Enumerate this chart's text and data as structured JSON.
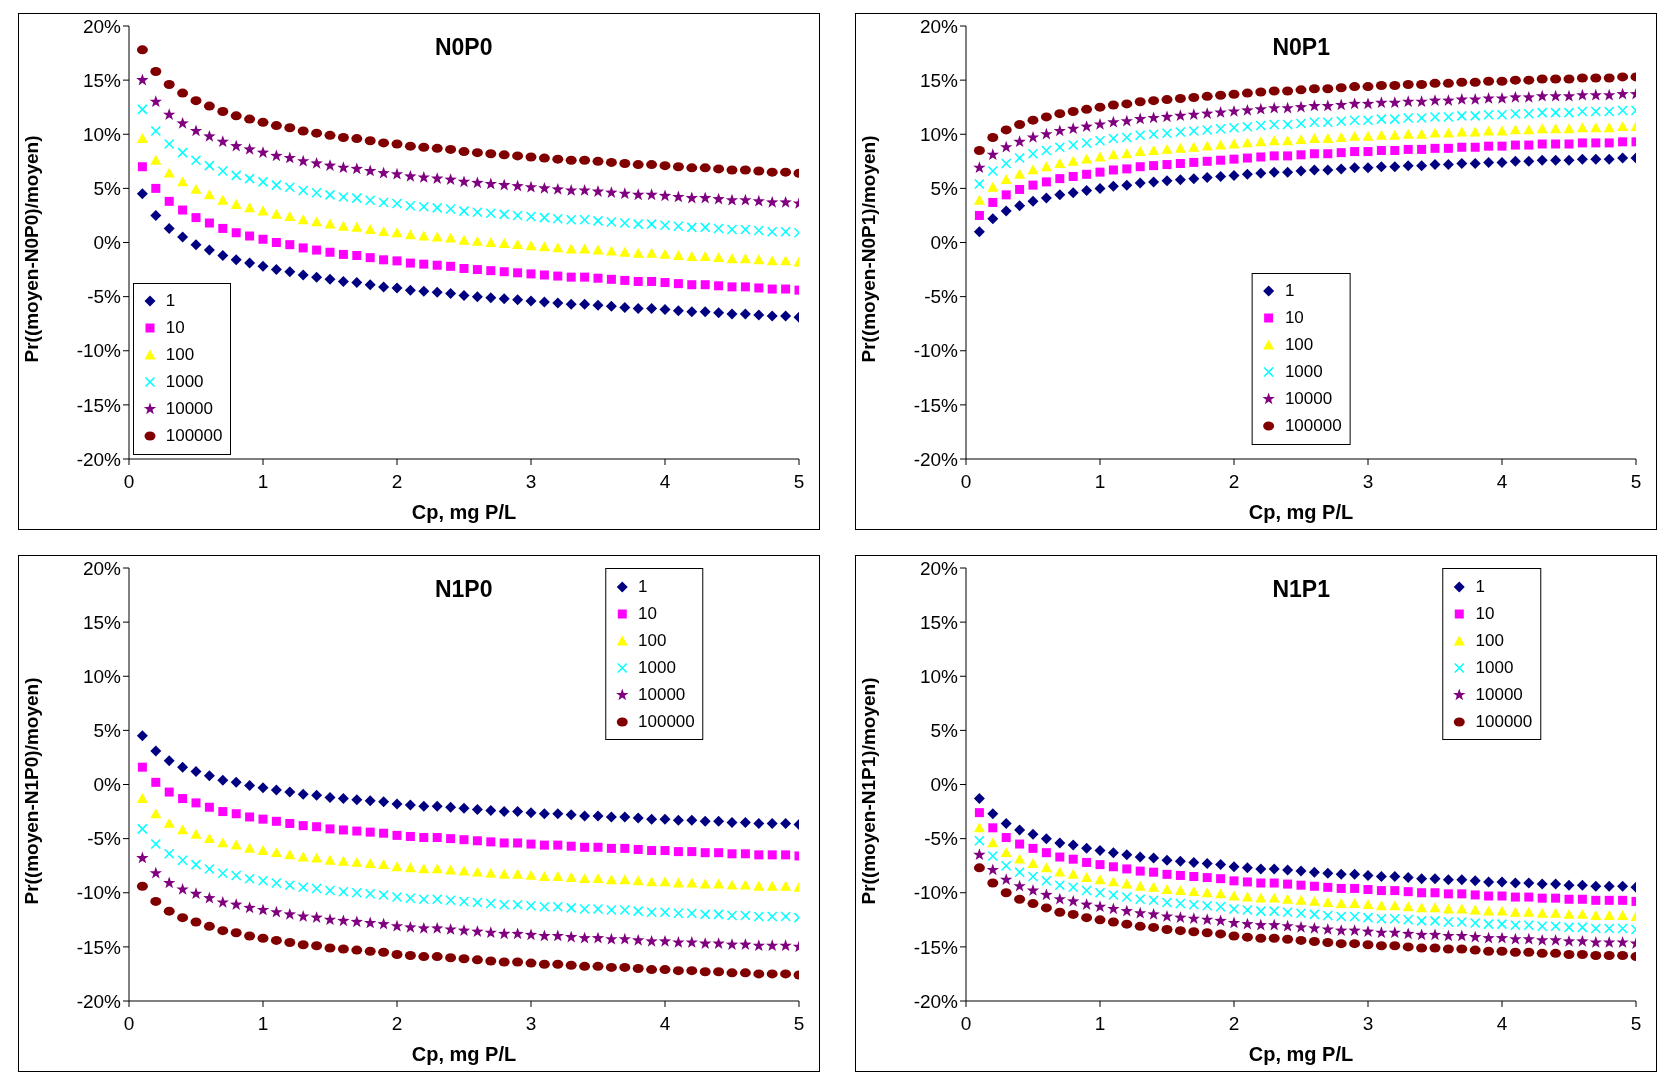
{
  "chart_data": [
    {
      "type": "scatter",
      "title": "N0P0",
      "xlabel": "Cp, mg P/L",
      "ylabel": "Pr((moyen-N0P0)/moyen)",
      "legend": "bottom left",
      "xlim": [
        0,
        5
      ],
      "xticks": [
        0,
        1,
        2,
        3,
        4,
        5
      ],
      "ylim": [
        -20,
        20
      ],
      "yticks": [
        {
          "value": -20,
          "label": "-20%"
        },
        {
          "value": -15,
          "label": "-15%"
        },
        {
          "value": -10,
          "label": "-10%"
        },
        {
          "value": -5,
          "label": "-5%"
        },
        {
          "value": 0,
          "label": "0%"
        },
        {
          "value": 5,
          "label": "5%"
        },
        {
          "value": 10,
          "label": "10%"
        },
        {
          "value": 15,
          "label": "15%"
        },
        {
          "value": 20,
          "label": "20%"
        }
      ],
      "x": [
        0.1,
        0.2,
        0.3,
        0.4,
        0.5,
        0.6,
        0.7,
        0.8,
        0.9,
        1.0,
        1.1,
        1.2,
        1.3,
        1.4,
        1.5,
        1.6,
        1.7,
        1.8,
        1.9,
        2.0,
        2.1,
        2.2,
        2.3,
        2.4,
        2.5,
        2.6,
        2.7,
        2.8,
        2.9,
        3.0,
        3.1,
        3.2,
        3.3,
        3.4,
        3.5,
        3.6,
        3.7,
        3.8,
        3.9,
        4.0,
        4.1,
        4.2,
        4.3,
        4.4,
        4.5,
        4.6,
        4.7,
        4.8,
        4.9,
        5.0
      ],
      "series": [
        {
          "name": "1",
          "color": "#000080",
          "marker": "diamond",
          "values": [
            4.5,
            2.5,
            1.3,
            0.5,
            -0.2,
            -0.7,
            -1.2,
            -1.6,
            -1.9,
            -2.2,
            -2.5,
            -2.7,
            -3.0,
            -3.2,
            -3.4,
            -3.6,
            -3.7,
            -3.9,
            -4.1,
            -4.2,
            -4.4,
            -4.5,
            -4.6,
            -4.7,
            -4.9,
            -5.0,
            -5.1,
            -5.2,
            -5.3,
            -5.4,
            -5.5,
            -5.6,
            -5.7,
            -5.7,
            -5.8,
            -5.9,
            -6.0,
            -6.1,
            -6.1,
            -6.2,
            -6.3,
            -6.4,
            -6.4,
            -6.5,
            -6.6,
            -6.6,
            -6.7,
            -6.8,
            -6.8,
            -6.9
          ]
        },
        {
          "name": "10",
          "color": "#ff00ff",
          "marker": "square",
          "values": [
            7.0,
            5.0,
            3.8,
            3.0,
            2.3,
            1.8,
            1.3,
            0.9,
            0.6,
            0.3,
            0.0,
            -0.2,
            -0.5,
            -0.7,
            -0.9,
            -1.1,
            -1.2,
            -1.4,
            -1.6,
            -1.7,
            -1.9,
            -2.0,
            -2.1,
            -2.2,
            -2.4,
            -2.5,
            -2.6,
            -2.7,
            -2.8,
            -2.9,
            -3.0,
            -3.1,
            -3.2,
            -3.2,
            -3.3,
            -3.4,
            -3.5,
            -3.6,
            -3.6,
            -3.7,
            -3.8,
            -3.9,
            -3.9,
            -4.0,
            -4.1,
            -4.1,
            -4.2,
            -4.3,
            -4.3,
            -4.4
          ]
        },
        {
          "name": "100",
          "color": "#ffff00",
          "marker": "triangle",
          "values": [
            9.6,
            7.6,
            6.4,
            5.6,
            4.9,
            4.4,
            3.9,
            3.5,
            3.2,
            2.9,
            2.6,
            2.4,
            2.1,
            1.9,
            1.7,
            1.5,
            1.4,
            1.2,
            1.0,
            0.9,
            0.7,
            0.6,
            0.5,
            0.4,
            0.2,
            0.1,
            0.0,
            -0.1,
            -0.2,
            -0.3,
            -0.4,
            -0.5,
            -0.6,
            -0.6,
            -0.7,
            -0.8,
            -0.9,
            -1.0,
            -1.0,
            -1.1,
            -1.2,
            -1.3,
            -1.3,
            -1.4,
            -1.5,
            -1.5,
            -1.6,
            -1.7,
            -1.7,
            -1.8
          ]
        },
        {
          "name": "1000",
          "color": "#00ffff",
          "marker": "cross",
          "values": [
            12.3,
            10.3,
            9.1,
            8.3,
            7.6,
            7.1,
            6.6,
            6.2,
            5.9,
            5.6,
            5.3,
            5.1,
            4.8,
            4.6,
            4.4,
            4.2,
            4.1,
            3.9,
            3.7,
            3.6,
            3.4,
            3.3,
            3.2,
            3.1,
            2.9,
            2.8,
            2.7,
            2.6,
            2.5,
            2.4,
            2.3,
            2.2,
            2.1,
            2.1,
            2.0,
            1.9,
            1.8,
            1.7,
            1.7,
            1.6,
            1.5,
            1.4,
            1.4,
            1.3,
            1.2,
            1.2,
            1.1,
            1.0,
            1.0,
            0.9
          ]
        },
        {
          "name": "10000",
          "color": "#800080",
          "marker": "star",
          "values": [
            15.0,
            13.0,
            11.8,
            11.0,
            10.3,
            9.8,
            9.3,
            8.9,
            8.6,
            8.3,
            8.0,
            7.8,
            7.5,
            7.3,
            7.1,
            6.9,
            6.8,
            6.6,
            6.4,
            6.3,
            6.1,
            6.0,
            5.9,
            5.8,
            5.6,
            5.5,
            5.4,
            5.3,
            5.2,
            5.1,
            5.0,
            4.9,
            4.8,
            4.8,
            4.7,
            4.6,
            4.5,
            4.4,
            4.4,
            4.3,
            4.2,
            4.1,
            4.1,
            4.0,
            3.9,
            3.9,
            3.8,
            3.7,
            3.7,
            3.6
          ]
        },
        {
          "name": "100000",
          "color": "#800000",
          "marker": "circle",
          "values": [
            17.8,
            15.8,
            14.6,
            13.8,
            13.1,
            12.6,
            12.1,
            11.7,
            11.4,
            11.1,
            10.8,
            10.6,
            10.3,
            10.1,
            9.9,
            9.7,
            9.6,
            9.4,
            9.2,
            9.1,
            8.9,
            8.8,
            8.7,
            8.6,
            8.4,
            8.3,
            8.2,
            8.1,
            8.0,
            7.9,
            7.8,
            7.7,
            7.6,
            7.6,
            7.5,
            7.4,
            7.3,
            7.2,
            7.2,
            7.1,
            7.0,
            6.9,
            6.9,
            6.8,
            6.7,
            6.7,
            6.6,
            6.5,
            6.5,
            6.4
          ]
        }
      ]
    },
    {
      "type": "scatter",
      "title": "N0P1",
      "xlabel": "Cp, mg P/L",
      "ylabel": "Pr((moyen-N0P1)/moyen)",
      "legend": "bottom",
      "xlim": [
        0,
        5
      ],
      "xticks": [
        0,
        1,
        2,
        3,
        4,
        5
      ],
      "ylim": [
        -20,
        20
      ],
      "yticks": [
        {
          "value": -20,
          "label": "-20%"
        },
        {
          "value": -15,
          "label": "-15%"
        },
        {
          "value": -10,
          "label": "-10%"
        },
        {
          "value": -5,
          "label": "-5%"
        },
        {
          "value": 0,
          "label": "0%"
        },
        {
          "value": 5,
          "label": "5%"
        },
        {
          "value": 10,
          "label": "10%"
        },
        {
          "value": 15,
          "label": "15%"
        },
        {
          "value": 20,
          "label": "20%"
        }
      ],
      "x": [
        0.1,
        0.2,
        0.3,
        0.4,
        0.5,
        0.6,
        0.7,
        0.8,
        0.9,
        1.0,
        1.1,
        1.2,
        1.3,
        1.4,
        1.5,
        1.6,
        1.7,
        1.8,
        1.9,
        2.0,
        2.1,
        2.2,
        2.3,
        2.4,
        2.5,
        2.6,
        2.7,
        2.8,
        2.9,
        3.0,
        3.1,
        3.2,
        3.3,
        3.4,
        3.5,
        3.6,
        3.7,
        3.8,
        3.9,
        4.0,
        4.1,
        4.2,
        4.3,
        4.4,
        4.5,
        4.6,
        4.7,
        4.8,
        4.9,
        5.0
      ],
      "series": [
        {
          "name": "1",
          "color": "#000080",
          "marker": "diamond",
          "values": [
            1.0,
            2.2,
            2.9,
            3.4,
            3.8,
            4.1,
            4.4,
            4.6,
            4.8,
            5.0,
            5.2,
            5.3,
            5.5,
            5.6,
            5.7,
            5.8,
            5.9,
            6.0,
            6.1,
            6.2,
            6.3,
            6.4,
            6.5,
            6.5,
            6.6,
            6.7,
            6.7,
            6.8,
            6.9,
            6.9,
            7.0,
            7.0,
            7.1,
            7.1,
            7.2,
            7.2,
            7.3,
            7.3,
            7.4,
            7.4,
            7.5,
            7.5,
            7.6,
            7.6,
            7.6,
            7.7,
            7.7,
            7.7,
            7.8,
            7.8
          ]
        },
        {
          "name": "10",
          "color": "#ff00ff",
          "marker": "square",
          "values": [
            2.5,
            3.7,
            4.4,
            4.9,
            5.3,
            5.6,
            5.9,
            6.1,
            6.3,
            6.5,
            6.7,
            6.8,
            7.0,
            7.1,
            7.2,
            7.3,
            7.4,
            7.5,
            7.6,
            7.7,
            7.8,
            7.9,
            8.0,
            8.0,
            8.1,
            8.2,
            8.2,
            8.3,
            8.4,
            8.4,
            8.5,
            8.5,
            8.6,
            8.6,
            8.7,
            8.7,
            8.8,
            8.8,
            8.9,
            8.9,
            9.0,
            9.0,
            9.1,
            9.1,
            9.1,
            9.2,
            9.2,
            9.2,
            9.3,
            9.3
          ]
        },
        {
          "name": "100",
          "color": "#ffff00",
          "marker": "triangle",
          "values": [
            3.9,
            5.1,
            5.8,
            6.3,
            6.7,
            7.0,
            7.3,
            7.5,
            7.7,
            7.9,
            8.1,
            8.2,
            8.4,
            8.5,
            8.6,
            8.7,
            8.8,
            8.9,
            9.0,
            9.1,
            9.2,
            9.3,
            9.4,
            9.4,
            9.5,
            9.6,
            9.6,
            9.7,
            9.8,
            9.8,
            9.9,
            9.9,
            10.0,
            10.0,
            10.1,
            10.1,
            10.2,
            10.2,
            10.3,
            10.3,
            10.4,
            10.4,
            10.5,
            10.5,
            10.5,
            10.6,
            10.6,
            10.6,
            10.7,
            10.7
          ]
        },
        {
          "name": "1000",
          "color": "#00ffff",
          "marker": "cross",
          "values": [
            5.4,
            6.6,
            7.3,
            7.8,
            8.2,
            8.5,
            8.8,
            9.0,
            9.2,
            9.4,
            9.6,
            9.7,
            9.9,
            10.0,
            10.1,
            10.2,
            10.3,
            10.4,
            10.5,
            10.6,
            10.7,
            10.8,
            10.9,
            10.9,
            11.0,
            11.1,
            11.1,
            11.2,
            11.3,
            11.3,
            11.4,
            11.4,
            11.5,
            11.5,
            11.6,
            11.6,
            11.7,
            11.7,
            11.8,
            11.8,
            11.9,
            11.9,
            12.0,
            12.0,
            12.0,
            12.1,
            12.1,
            12.1,
            12.2,
            12.2
          ]
        },
        {
          "name": "10000",
          "color": "#800080",
          "marker": "star",
          "values": [
            6.9,
            8.1,
            8.8,
            9.3,
            9.7,
            10.0,
            10.3,
            10.5,
            10.7,
            10.9,
            11.1,
            11.2,
            11.4,
            11.5,
            11.6,
            11.7,
            11.8,
            11.9,
            12.0,
            12.1,
            12.2,
            12.3,
            12.4,
            12.4,
            12.5,
            12.6,
            12.6,
            12.7,
            12.8,
            12.8,
            12.9,
            12.9,
            13.0,
            13.0,
            13.1,
            13.1,
            13.2,
            13.2,
            13.3,
            13.3,
            13.4,
            13.4,
            13.5,
            13.5,
            13.5,
            13.6,
            13.6,
            13.6,
            13.7,
            13.7
          ]
        },
        {
          "name": "100000",
          "color": "#800000",
          "marker": "circle",
          "values": [
            8.5,
            9.7,
            10.4,
            10.9,
            11.3,
            11.6,
            11.9,
            12.1,
            12.3,
            12.5,
            12.7,
            12.8,
            13.0,
            13.1,
            13.2,
            13.3,
            13.4,
            13.5,
            13.6,
            13.7,
            13.8,
            13.9,
            14.0,
            14.0,
            14.1,
            14.2,
            14.2,
            14.3,
            14.4,
            14.4,
            14.5,
            14.5,
            14.6,
            14.6,
            14.7,
            14.7,
            14.8,
            14.8,
            14.9,
            14.9,
            15.0,
            15.0,
            15.1,
            15.1,
            15.1,
            15.2,
            15.2,
            15.2,
            15.3,
            15.3
          ]
        }
      ]
    },
    {
      "type": "scatter",
      "title": "N1P0",
      "xlabel": "Cp, mg P/L",
      "ylabel": "Pr((moyen-N1P0)/moyen)",
      "legend": "top right",
      "xlim": [
        0,
        5
      ],
      "xticks": [
        0,
        1,
        2,
        3,
        4,
        5
      ],
      "ylim": [
        -20,
        20
      ],
      "yticks": [
        {
          "value": -20,
          "label": "-20%"
        },
        {
          "value": -15,
          "label": "-15%"
        },
        {
          "value": -10,
          "label": "-10%"
        },
        {
          "value": -5,
          "label": "-5%"
        },
        {
          "value": 0,
          "label": "0%"
        },
        {
          "value": 5,
          "label": "5%"
        },
        {
          "value": 10,
          "label": "10%"
        },
        {
          "value": 15,
          "label": "15%"
        },
        {
          "value": 20,
          "label": "20%"
        }
      ],
      "x": [
        0.1,
        0.2,
        0.3,
        0.4,
        0.5,
        0.6,
        0.7,
        0.8,
        0.9,
        1.0,
        1.1,
        1.2,
        1.3,
        1.4,
        1.5,
        1.6,
        1.7,
        1.8,
        1.9,
        2.0,
        2.1,
        2.2,
        2.3,
        2.4,
        2.5,
        2.6,
        2.7,
        2.8,
        2.9,
        3.0,
        3.1,
        3.2,
        3.3,
        3.4,
        3.5,
        3.6,
        3.7,
        3.8,
        3.9,
        4.0,
        4.1,
        4.2,
        4.3,
        4.4,
        4.5,
        4.6,
        4.7,
        4.8,
        4.9,
        5.0
      ],
      "series": [
        {
          "name": "1",
          "color": "#000080",
          "marker": "diamond",
          "values": [
            4.5,
            3.1,
            2.2,
            1.6,
            1.2,
            0.8,
            0.4,
            0.2,
            -0.1,
            -0.3,
            -0.5,
            -0.7,
            -0.9,
            -1.0,
            -1.2,
            -1.3,
            -1.4,
            -1.5,
            -1.6,
            -1.8,
            -1.9,
            -2.0,
            -2.0,
            -2.1,
            -2.2,
            -2.3,
            -2.4,
            -2.5,
            -2.5,
            -2.6,
            -2.7,
            -2.7,
            -2.8,
            -2.9,
            -2.9,
            -3.0,
            -3.0,
            -3.1,
            -3.2,
            -3.2,
            -3.3,
            -3.3,
            -3.4,
            -3.4,
            -3.5,
            -3.5,
            -3.6,
            -3.6,
            -3.6,
            -3.7
          ]
        },
        {
          "name": "10",
          "color": "#ff00ff",
          "marker": "square",
          "values": [
            1.6,
            0.2,
            -0.7,
            -1.3,
            -1.7,
            -2.1,
            -2.5,
            -2.7,
            -3.0,
            -3.2,
            -3.4,
            -3.6,
            -3.8,
            -3.9,
            -4.1,
            -4.2,
            -4.3,
            -4.4,
            -4.5,
            -4.7,
            -4.8,
            -4.9,
            -4.9,
            -5.0,
            -5.1,
            -5.2,
            -5.3,
            -5.4,
            -5.4,
            -5.5,
            -5.6,
            -5.6,
            -5.7,
            -5.8,
            -5.8,
            -5.9,
            -5.9,
            -6.0,
            -6.1,
            -6.1,
            -6.2,
            -6.2,
            -6.3,
            -6.3,
            -6.4,
            -6.4,
            -6.5,
            -6.5,
            -6.5,
            -6.6
          ]
        },
        {
          "name": "100",
          "color": "#ffff00",
          "marker": "triangle",
          "values": [
            -1.3,
            -2.7,
            -3.6,
            -4.2,
            -4.6,
            -5.0,
            -5.4,
            -5.6,
            -5.9,
            -6.1,
            -6.3,
            -6.5,
            -6.7,
            -6.8,
            -7.0,
            -7.1,
            -7.2,
            -7.3,
            -7.4,
            -7.6,
            -7.7,
            -7.8,
            -7.8,
            -7.9,
            -8.0,
            -8.1,
            -8.2,
            -8.3,
            -8.3,
            -8.4,
            -8.5,
            -8.5,
            -8.6,
            -8.7,
            -8.7,
            -8.8,
            -8.8,
            -8.9,
            -9.0,
            -9.0,
            -9.1,
            -9.1,
            -9.2,
            -9.2,
            -9.3,
            -9.3,
            -9.4,
            -9.4,
            -9.4,
            -9.5
          ]
        },
        {
          "name": "1000",
          "color": "#00ffff",
          "marker": "cross",
          "values": [
            -4.1,
            -5.5,
            -6.4,
            -7.0,
            -7.4,
            -7.8,
            -8.2,
            -8.4,
            -8.7,
            -8.9,
            -9.1,
            -9.3,
            -9.5,
            -9.6,
            -9.8,
            -9.9,
            -10.0,
            -10.1,
            -10.2,
            -10.4,
            -10.5,
            -10.6,
            -10.6,
            -10.7,
            -10.8,
            -10.9,
            -11.0,
            -11.1,
            -11.1,
            -11.2,
            -11.3,
            -11.3,
            -11.4,
            -11.5,
            -11.5,
            -11.6,
            -11.6,
            -11.7,
            -11.8,
            -11.8,
            -11.9,
            -11.9,
            -12.0,
            -12.0,
            -12.1,
            -12.1,
            -12.2,
            -12.2,
            -12.2,
            -12.3
          ]
        },
        {
          "name": "10000",
          "color": "#800080",
          "marker": "star",
          "values": [
            -6.8,
            -8.2,
            -9.1,
            -9.7,
            -10.1,
            -10.5,
            -10.9,
            -11.1,
            -11.4,
            -11.6,
            -11.8,
            -12.0,
            -12.2,
            -12.3,
            -12.5,
            -12.6,
            -12.7,
            -12.8,
            -12.9,
            -13.1,
            -13.2,
            -13.3,
            -13.3,
            -13.4,
            -13.5,
            -13.6,
            -13.7,
            -13.8,
            -13.8,
            -13.9,
            -14.0,
            -14.0,
            -14.1,
            -14.2,
            -14.2,
            -14.3,
            -14.3,
            -14.4,
            -14.5,
            -14.5,
            -14.6,
            -14.6,
            -14.7,
            -14.7,
            -14.8,
            -14.8,
            -14.9,
            -14.9,
            -14.9,
            -15.0
          ]
        },
        {
          "name": "100000",
          "color": "#800000",
          "marker": "circle",
          "values": [
            -9.4,
            -10.8,
            -11.7,
            -12.3,
            -12.7,
            -13.1,
            -13.5,
            -13.7,
            -14.0,
            -14.2,
            -14.4,
            -14.6,
            -14.8,
            -14.9,
            -15.1,
            -15.2,
            -15.3,
            -15.4,
            -15.5,
            -15.7,
            -15.8,
            -15.9,
            -15.9,
            -16.0,
            -16.1,
            -16.2,
            -16.3,
            -16.4,
            -16.4,
            -16.5,
            -16.6,
            -16.6,
            -16.7,
            -16.8,
            -16.8,
            -16.9,
            -16.9,
            -17.0,
            -17.1,
            -17.1,
            -17.2,
            -17.2,
            -17.3,
            -17.3,
            -17.4,
            -17.4,
            -17.5,
            -17.5,
            -17.5,
            -17.6
          ]
        }
      ]
    },
    {
      "type": "scatter",
      "title": "N1P1",
      "xlabel": "Cp, mg P/L",
      "ylabel": "Pr((moyen-N1P1)/moyen)",
      "legend": "top right",
      "xlim": [
        0,
        5
      ],
      "xticks": [
        0,
        1,
        2,
        3,
        4,
        5
      ],
      "ylim": [
        -20,
        20
      ],
      "yticks": [
        {
          "value": -20,
          "label": "-20%"
        },
        {
          "value": -15,
          "label": "-15%"
        },
        {
          "value": -10,
          "label": "-10%"
        },
        {
          "value": -5,
          "label": "-5%"
        },
        {
          "value": 0,
          "label": "0%"
        },
        {
          "value": 5,
          "label": "5%"
        },
        {
          "value": 10,
          "label": "10%"
        },
        {
          "value": 15,
          "label": "15%"
        },
        {
          "value": 20,
          "label": "20%"
        }
      ],
      "x": [
        0.1,
        0.2,
        0.3,
        0.4,
        0.5,
        0.6,
        0.7,
        0.8,
        0.9,
        1.0,
        1.1,
        1.2,
        1.3,
        1.4,
        1.5,
        1.6,
        1.7,
        1.8,
        1.9,
        2.0,
        2.1,
        2.2,
        2.3,
        2.4,
        2.5,
        2.6,
        2.7,
        2.8,
        2.9,
        3.0,
        3.1,
        3.2,
        3.3,
        3.4,
        3.5,
        3.6,
        3.7,
        3.8,
        3.9,
        4.0,
        4.1,
        4.2,
        4.3,
        4.4,
        4.5,
        4.6,
        4.7,
        4.8,
        4.9,
        5.0
      ],
      "series": [
        {
          "name": "1",
          "color": "#000080",
          "marker": "diamond",
          "values": [
            -1.3,
            -2.7,
            -3.6,
            -4.2,
            -4.6,
            -5.0,
            -5.4,
            -5.6,
            -5.9,
            -6.1,
            -6.3,
            -6.5,
            -6.7,
            -6.8,
            -7.0,
            -7.1,
            -7.2,
            -7.3,
            -7.4,
            -7.6,
            -7.7,
            -7.8,
            -7.8,
            -7.9,
            -8.0,
            -8.1,
            -8.2,
            -8.3,
            -8.3,
            -8.4,
            -8.5,
            -8.5,
            -8.6,
            -8.7,
            -8.7,
            -8.8,
            -8.8,
            -8.9,
            -9.0,
            -9.0,
            -9.1,
            -9.1,
            -9.2,
            -9.2,
            -9.3,
            -9.3,
            -9.4,
            -9.4,
            -9.4,
            -9.5
          ]
        },
        {
          "name": "10",
          "color": "#ff00ff",
          "marker": "square",
          "values": [
            -2.6,
            -4.0,
            -4.9,
            -5.5,
            -5.9,
            -6.3,
            -6.7,
            -6.9,
            -7.2,
            -7.4,
            -7.6,
            -7.8,
            -8.0,
            -8.1,
            -8.3,
            -8.4,
            -8.5,
            -8.6,
            -8.7,
            -8.9,
            -9.0,
            -9.1,
            -9.1,
            -9.2,
            -9.3,
            -9.4,
            -9.5,
            -9.6,
            -9.6,
            -9.7,
            -9.8,
            -9.8,
            -9.9,
            -10.0,
            -10.0,
            -10.1,
            -10.1,
            -10.2,
            -10.3,
            -10.3,
            -10.4,
            -10.4,
            -10.5,
            -10.5,
            -10.6,
            -10.6,
            -10.7,
            -10.7,
            -10.7,
            -10.8
          ]
        },
        {
          "name": "100",
          "color": "#ffff00",
          "marker": "triangle",
          "values": [
            -4.0,
            -5.4,
            -6.3,
            -6.9,
            -7.3,
            -7.7,
            -8.1,
            -8.3,
            -8.6,
            -8.8,
            -9.0,
            -9.2,
            -9.4,
            -9.5,
            -9.7,
            -9.8,
            -9.9,
            -10.0,
            -10.1,
            -10.3,
            -10.4,
            -10.5,
            -10.5,
            -10.6,
            -10.7,
            -10.8,
            -10.9,
            -11.0,
            -11.0,
            -11.1,
            -11.2,
            -11.2,
            -11.3,
            -11.4,
            -11.4,
            -11.5,
            -11.5,
            -11.6,
            -11.7,
            -11.7,
            -11.8,
            -11.8,
            -11.9,
            -11.9,
            -12.0,
            -12.0,
            -12.1,
            -12.1,
            -12.1,
            -12.2
          ]
        },
        {
          "name": "1000",
          "color": "#00ffff",
          "marker": "cross",
          "values": [
            -5.2,
            -6.6,
            -7.5,
            -8.1,
            -8.5,
            -8.9,
            -9.3,
            -9.5,
            -9.8,
            -10.0,
            -10.2,
            -10.4,
            -10.6,
            -10.7,
            -10.9,
            -11.0,
            -11.1,
            -11.2,
            -11.3,
            -11.5,
            -11.6,
            -11.7,
            -11.7,
            -11.8,
            -11.9,
            -12.0,
            -12.1,
            -12.2,
            -12.2,
            -12.3,
            -12.4,
            -12.4,
            -12.5,
            -12.6,
            -12.6,
            -12.7,
            -12.7,
            -12.8,
            -12.9,
            -12.9,
            -13.0,
            -13.0,
            -13.1,
            -13.1,
            -13.2,
            -13.2,
            -13.3,
            -13.3,
            -13.3,
            -13.4
          ]
        },
        {
          "name": "10000",
          "color": "#800080",
          "marker": "star",
          "values": [
            -6.5,
            -7.9,
            -8.8,
            -9.4,
            -9.8,
            -10.2,
            -10.6,
            -10.8,
            -11.1,
            -11.3,
            -11.5,
            -11.7,
            -11.9,
            -12.0,
            -12.2,
            -12.3,
            -12.4,
            -12.5,
            -12.6,
            -12.8,
            -12.9,
            -13.0,
            -13.0,
            -13.1,
            -13.2,
            -13.3,
            -13.4,
            -13.5,
            -13.5,
            -13.6,
            -13.7,
            -13.7,
            -13.8,
            -13.9,
            -13.9,
            -14.0,
            -14.0,
            -14.1,
            -14.2,
            -14.2,
            -14.3,
            -14.3,
            -14.4,
            -14.4,
            -14.5,
            -14.5,
            -14.6,
            -14.6,
            -14.6,
            -14.7
          ]
        },
        {
          "name": "100000",
          "color": "#800000",
          "marker": "circle",
          "values": [
            -7.7,
            -9.1,
            -10.0,
            -10.6,
            -11.0,
            -11.4,
            -11.8,
            -12.0,
            -12.3,
            -12.5,
            -12.7,
            -12.9,
            -13.1,
            -13.2,
            -13.4,
            -13.5,
            -13.6,
            -13.7,
            -13.8,
            -14.0,
            -14.1,
            -14.2,
            -14.2,
            -14.3,
            -14.4,
            -14.5,
            -14.6,
            -14.7,
            -14.7,
            -14.8,
            -14.9,
            -14.9,
            -15.0,
            -15.1,
            -15.1,
            -15.2,
            -15.2,
            -15.3,
            -15.4,
            -15.4,
            -15.5,
            -15.5,
            -15.6,
            -15.6,
            -15.7,
            -15.7,
            -15.8,
            -15.8,
            -15.8,
            -15.9
          ]
        }
      ]
    }
  ]
}
